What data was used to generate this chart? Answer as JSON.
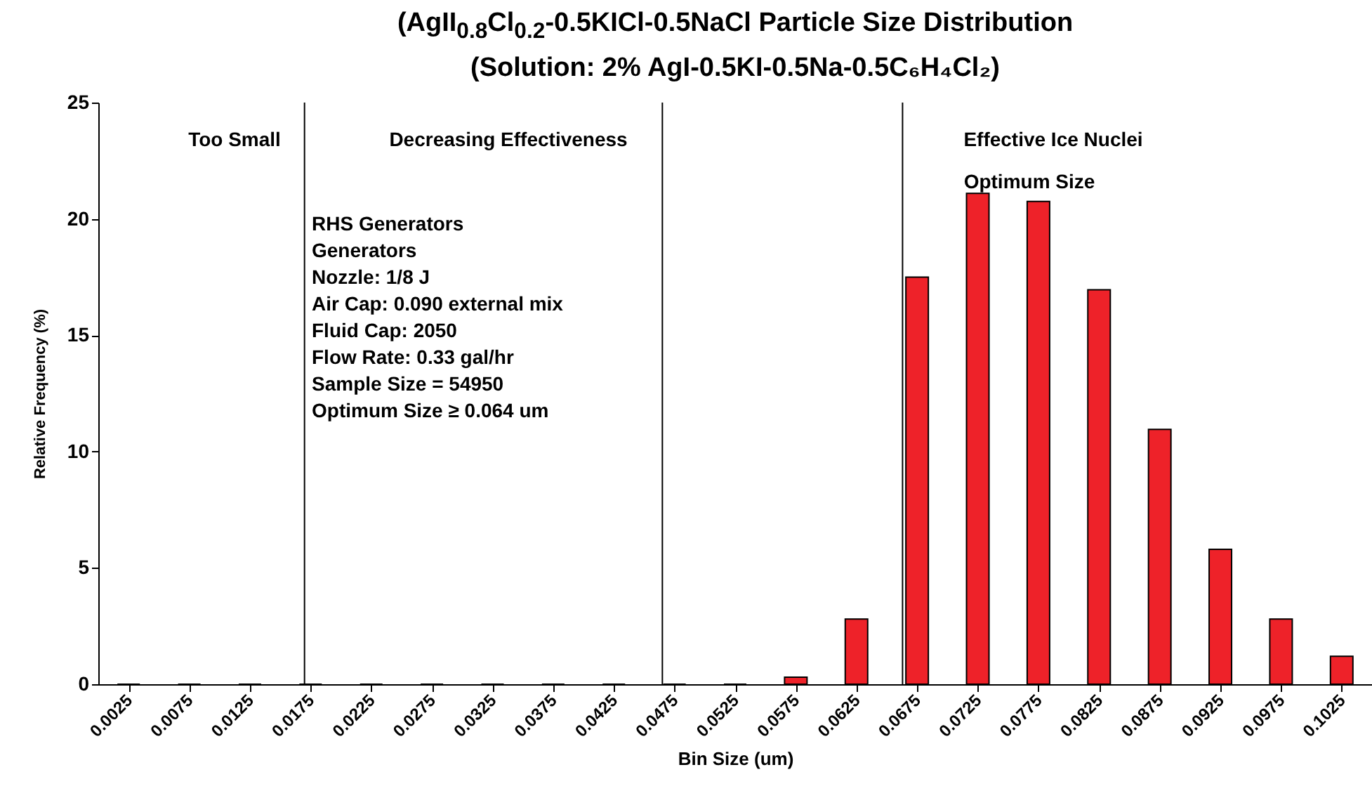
{
  "chart_data": {
    "type": "bar",
    "title": "(AgII$_{0.8}$Cl$_{0.2}$-0.5KICl-0.5NaCl Particle Size Distribution",
    "subtitle": "(Solution: 2% AgI-0.5KI-0.5Na-0.5C₆H₄Cl₂)",
    "xlabel": "Bin Size (um)",
    "ylabel": "Relative Frequency (%)",
    "x": [
      0.0025,
      0.0075,
      0.0125,
      0.0175,
      0.0225,
      0.0275,
      0.0325,
      0.0375,
      0.0425,
      0.0475,
      0.0525,
      0.0575,
      0.0625,
      0.0675,
      0.0725,
      0.0775,
      0.0825,
      0.0875,
      0.0925,
      0.0975,
      0.1025
    ],
    "values": [
      0,
      0,
      0,
      0,
      0,
      0,
      0,
      0,
      0,
      0,
      0,
      0.3,
      2.8,
      17.5,
      21.1,
      20.75,
      16.95,
      10.95,
      5.8,
      2.8,
      1.2
    ],
    "color": "#ee2229",
    "xlim": [
      0,
      0.105
    ],
    "xticks": [
      {
        "value": 0.0025,
        "label": "0.0025"
      },
      {
        "value": 0.0075,
        "label": "0.0075"
      },
      {
        "value": 0.0125,
        "label": "0.0125"
      },
      {
        "value": 0.0175,
        "label": "0.0175"
      },
      {
        "value": 0.0225,
        "label": "0.0225"
      },
      {
        "value": 0.0275,
        "label": "0.0275"
      },
      {
        "value": 0.0325,
        "label": "0.0325"
      },
      {
        "value": 0.0375,
        "label": "0.0375"
      },
      {
        "value": 0.0425,
        "label": "0.0425"
      },
      {
        "value": 0.0475,
        "label": "0.0475"
      },
      {
        "value": 0.0525,
        "label": "0.0525"
      },
      {
        "value": 0.0575,
        "label": "0.0575"
      },
      {
        "value": 0.0625,
        "label": "0.0625"
      },
      {
        "value": 0.0675,
        "label": "0.0675"
      },
      {
        "value": 0.0725,
        "label": "0.0725"
      },
      {
        "value": 0.0775,
        "label": "0.0775"
      },
      {
        "value": 0.0825,
        "label": "0.0825"
      },
      {
        "value": 0.0875,
        "label": "0.0875"
      },
      {
        "value": 0.0925,
        "label": "0.0925"
      },
      {
        "value": 0.0975,
        "label": "0.0975"
      },
      {
        "value": 0.1025,
        "label": "0.1025"
      }
    ],
    "ylim": [
      0,
      25
    ],
    "yticks": [
      0,
      5,
      10,
      15,
      20,
      25
    ],
    "ref_lines": [
      {
        "axis": "x",
        "value": 0.017,
        "color": "#000000"
      },
      {
        "axis": "x",
        "value": 0.0465,
        "color": "#000000"
      },
      {
        "axis": "x",
        "value": 0.0663,
        "color": "#000000"
      }
    ],
    "annotations": [
      "Too Small",
      "Decreasing Effectiveness",
      "Effective Ice Nuclei",
      "Optimum Size",
      "RHS Generators",
      "Generators",
      "Nozzle: 1/8 J",
      "Air Cap: 0.090 external mix",
      "Fluid Cap: 2050",
      "Flow Rate: 0.33 gal/hr",
      "Sample Size = 54950",
      "Optimum Size ≥ 0.064 um"
    ]
  }
}
